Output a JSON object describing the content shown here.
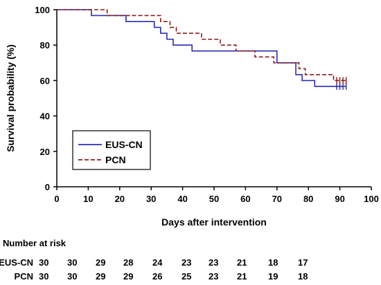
{
  "chart_data": {
    "type": "line",
    "title": "",
    "xlabel": "Days after intervention",
    "ylabel": "Survival probability (%)",
    "xlim": [
      0,
      100
    ],
    "ylim": [
      0,
      100
    ],
    "xticks": [
      0,
      10,
      20,
      30,
      40,
      50,
      60,
      70,
      80,
      90,
      100
    ],
    "yticks": [
      0,
      20,
      40,
      60,
      80,
      100
    ],
    "grid": false,
    "legend_position": "bottom-left",
    "step": true,
    "series": [
      {
        "name": "EUS-CN",
        "color": "#2b2bb0",
        "dash": "solid",
        "x": [
          0,
          11,
          22,
          31,
          33,
          35,
          37,
          43,
          55,
          70,
          76,
          78,
          82,
          88
        ],
        "y": [
          100,
          96.7,
          93.3,
          90,
          86.7,
          83.3,
          80,
          76.7,
          76.7,
          70,
          63.3,
          60,
          56.7,
          56.7
        ],
        "end_x": 92,
        "censor_x": [
          89,
          90,
          91,
          92
        ],
        "censor_y": 56.7
      },
      {
        "name": "PCN",
        "color": "#8b1a1a",
        "dash": "dashed",
        "x": [
          0,
          16,
          33,
          36,
          38,
          41,
          46,
          52,
          57,
          63,
          69,
          73,
          77,
          79,
          81,
          88
        ],
        "y": [
          100,
          96.7,
          93.3,
          90,
          86.7,
          86.7,
          83.3,
          80,
          76.7,
          73.3,
          70,
          70,
          66.7,
          63.3,
          63.3,
          60
        ],
        "end_x": 92,
        "censor_x": [
          89,
          90,
          91,
          92
        ],
        "censor_y": 60
      }
    ],
    "risk_table": {
      "title": "Number at risk",
      "times": [
        0,
        10,
        20,
        30,
        40,
        50,
        60,
        70,
        80,
        90
      ],
      "rows": [
        {
          "label": "EUS-CN",
          "values": [
            "30",
            "30",
            "29",
            "28",
            "24",
            "23",
            "23",
            "21",
            "18",
            "17"
          ]
        },
        {
          "label": "PCN",
          "values": [
            "30",
            "30",
            "29",
            "29",
            "26",
            "25",
            "23",
            "21",
            "19",
            "18"
          ]
        }
      ]
    }
  }
}
